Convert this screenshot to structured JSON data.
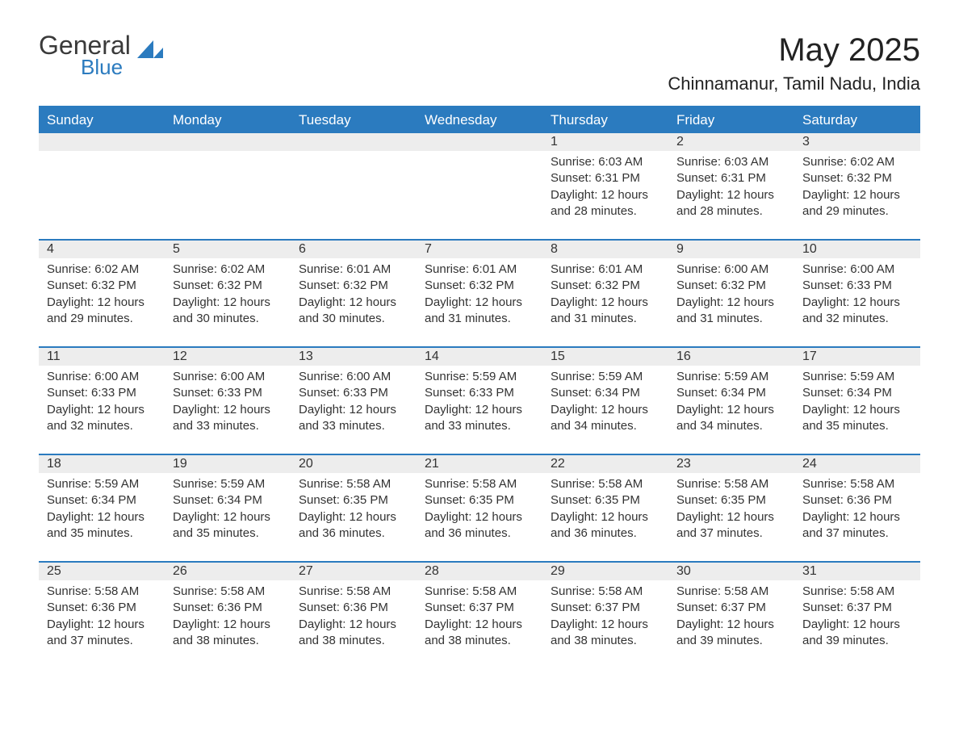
{
  "logo": {
    "general": "General",
    "blue": "Blue"
  },
  "title": "May 2025",
  "location": "Chinnamanur, Tamil Nadu, India",
  "colors": {
    "header_bg": "#2b7bbf",
    "header_text": "#ffffff",
    "row_border": "#2b7bbf",
    "daynum_bg": "#ededed",
    "text": "#333333",
    "background": "#ffffff"
  },
  "dayLabels": [
    "Sunday",
    "Monday",
    "Tuesday",
    "Wednesday",
    "Thursday",
    "Friday",
    "Saturday"
  ],
  "labels": {
    "sunrise": "Sunrise: ",
    "sunset": "Sunset: ",
    "daylight": "Daylight: "
  },
  "weeks": [
    [
      {
        "empty": true
      },
      {
        "empty": true
      },
      {
        "empty": true
      },
      {
        "empty": true
      },
      {
        "day": "1",
        "sunrise": "6:03 AM",
        "sunset": "6:31 PM",
        "daylight": "12 hours and 28 minutes."
      },
      {
        "day": "2",
        "sunrise": "6:03 AM",
        "sunset": "6:31 PM",
        "daylight": "12 hours and 28 minutes."
      },
      {
        "day": "3",
        "sunrise": "6:02 AM",
        "sunset": "6:32 PM",
        "daylight": "12 hours and 29 minutes."
      }
    ],
    [
      {
        "day": "4",
        "sunrise": "6:02 AM",
        "sunset": "6:32 PM",
        "daylight": "12 hours and 29 minutes."
      },
      {
        "day": "5",
        "sunrise": "6:02 AM",
        "sunset": "6:32 PM",
        "daylight": "12 hours and 30 minutes."
      },
      {
        "day": "6",
        "sunrise": "6:01 AM",
        "sunset": "6:32 PM",
        "daylight": "12 hours and 30 minutes."
      },
      {
        "day": "7",
        "sunrise": "6:01 AM",
        "sunset": "6:32 PM",
        "daylight": "12 hours and 31 minutes."
      },
      {
        "day": "8",
        "sunrise": "6:01 AM",
        "sunset": "6:32 PM",
        "daylight": "12 hours and 31 minutes."
      },
      {
        "day": "9",
        "sunrise": "6:00 AM",
        "sunset": "6:32 PM",
        "daylight": "12 hours and 31 minutes."
      },
      {
        "day": "10",
        "sunrise": "6:00 AM",
        "sunset": "6:33 PM",
        "daylight": "12 hours and 32 minutes."
      }
    ],
    [
      {
        "day": "11",
        "sunrise": "6:00 AM",
        "sunset": "6:33 PM",
        "daylight": "12 hours and 32 minutes."
      },
      {
        "day": "12",
        "sunrise": "6:00 AM",
        "sunset": "6:33 PM",
        "daylight": "12 hours and 33 minutes."
      },
      {
        "day": "13",
        "sunrise": "6:00 AM",
        "sunset": "6:33 PM",
        "daylight": "12 hours and 33 minutes."
      },
      {
        "day": "14",
        "sunrise": "5:59 AM",
        "sunset": "6:33 PM",
        "daylight": "12 hours and 33 minutes."
      },
      {
        "day": "15",
        "sunrise": "5:59 AM",
        "sunset": "6:34 PM",
        "daylight": "12 hours and 34 minutes."
      },
      {
        "day": "16",
        "sunrise": "5:59 AM",
        "sunset": "6:34 PM",
        "daylight": "12 hours and 34 minutes."
      },
      {
        "day": "17",
        "sunrise": "5:59 AM",
        "sunset": "6:34 PM",
        "daylight": "12 hours and 35 minutes."
      }
    ],
    [
      {
        "day": "18",
        "sunrise": "5:59 AM",
        "sunset": "6:34 PM",
        "daylight": "12 hours and 35 minutes."
      },
      {
        "day": "19",
        "sunrise": "5:59 AM",
        "sunset": "6:34 PM",
        "daylight": "12 hours and 35 minutes."
      },
      {
        "day": "20",
        "sunrise": "5:58 AM",
        "sunset": "6:35 PM",
        "daylight": "12 hours and 36 minutes."
      },
      {
        "day": "21",
        "sunrise": "5:58 AM",
        "sunset": "6:35 PM",
        "daylight": "12 hours and 36 minutes."
      },
      {
        "day": "22",
        "sunrise": "5:58 AM",
        "sunset": "6:35 PM",
        "daylight": "12 hours and 36 minutes."
      },
      {
        "day": "23",
        "sunrise": "5:58 AM",
        "sunset": "6:35 PM",
        "daylight": "12 hours and 37 minutes."
      },
      {
        "day": "24",
        "sunrise": "5:58 AM",
        "sunset": "6:36 PM",
        "daylight": "12 hours and 37 minutes."
      }
    ],
    [
      {
        "day": "25",
        "sunrise": "5:58 AM",
        "sunset": "6:36 PM",
        "daylight": "12 hours and 37 minutes."
      },
      {
        "day": "26",
        "sunrise": "5:58 AM",
        "sunset": "6:36 PM",
        "daylight": "12 hours and 38 minutes."
      },
      {
        "day": "27",
        "sunrise": "5:58 AM",
        "sunset": "6:36 PM",
        "daylight": "12 hours and 38 minutes."
      },
      {
        "day": "28",
        "sunrise": "5:58 AM",
        "sunset": "6:37 PM",
        "daylight": "12 hours and 38 minutes."
      },
      {
        "day": "29",
        "sunrise": "5:58 AM",
        "sunset": "6:37 PM",
        "daylight": "12 hours and 38 minutes."
      },
      {
        "day": "30",
        "sunrise": "5:58 AM",
        "sunset": "6:37 PM",
        "daylight": "12 hours and 39 minutes."
      },
      {
        "day": "31",
        "sunrise": "5:58 AM",
        "sunset": "6:37 PM",
        "daylight": "12 hours and 39 minutes."
      }
    ]
  ]
}
